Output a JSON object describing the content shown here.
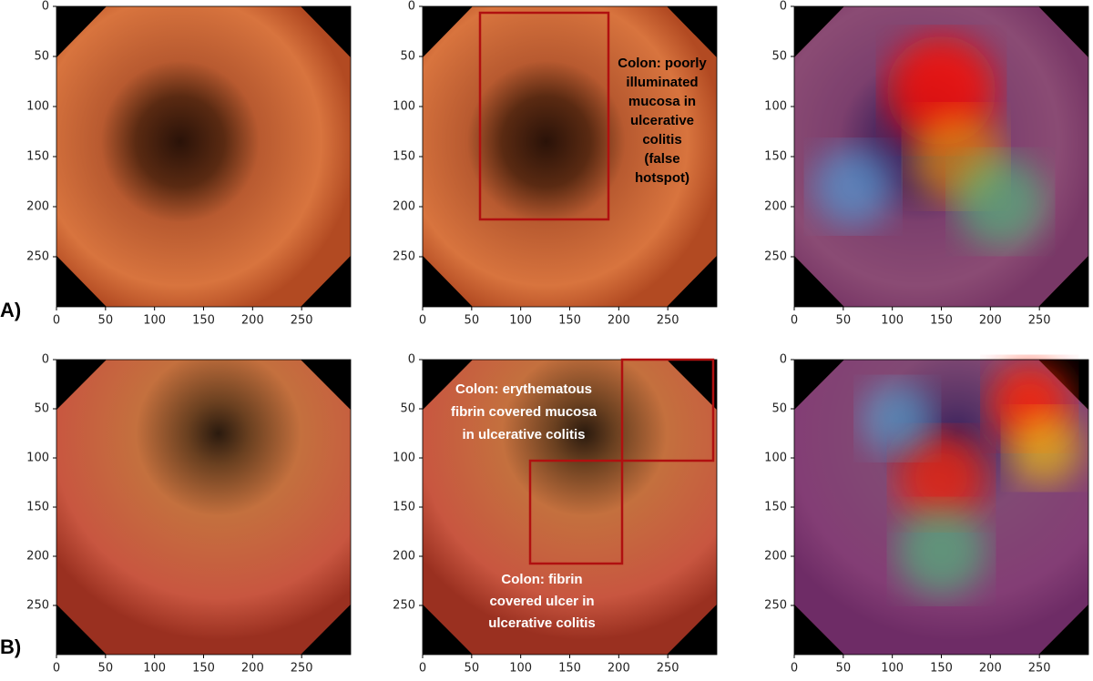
{
  "axes": {
    "xlim": [
      0,
      300
    ],
    "ylim": [
      0,
      300
    ],
    "xticks": [
      0,
      50,
      100,
      150,
      200,
      250
    ],
    "yticks": [
      0,
      50,
      100,
      150,
      200,
      250
    ]
  },
  "rows": [
    {
      "label": "A)",
      "annotations": [
        {
          "lines": [
            "Colon: poorly",
            "illuminated",
            "mucosa in",
            "ulcerative",
            "colitis",
            "(false",
            "hotspot)"
          ]
        }
      ]
    },
    {
      "label": "B)",
      "annotations": [
        {
          "lines": [
            "Colon: erythematous",
            "fibrin covered mucosa",
            "in ulcerative colitis"
          ]
        },
        {
          "lines": [
            "Colon: fibrin",
            "covered ulcer in",
            "ulcerative colitis"
          ]
        }
      ]
    }
  ]
}
